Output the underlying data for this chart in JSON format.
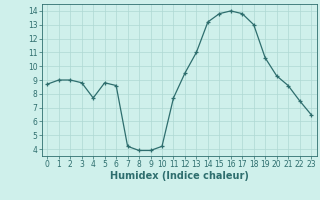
{
  "x": [
    0,
    1,
    2,
    3,
    4,
    5,
    6,
    7,
    8,
    9,
    10,
    11,
    12,
    13,
    14,
    15,
    16,
    17,
    18,
    19,
    20,
    21,
    22,
    23
  ],
  "y": [
    8.7,
    9.0,
    9.0,
    8.8,
    7.7,
    8.8,
    8.6,
    4.2,
    3.9,
    3.9,
    4.2,
    7.7,
    9.5,
    11.0,
    13.2,
    13.8,
    14.0,
    13.8,
    13.0,
    10.6,
    9.3,
    8.6,
    7.5,
    6.5
  ],
  "line_color": "#2e6e6e",
  "marker": "+",
  "bg_color": "#cff0eb",
  "grid_color": "#aed8d3",
  "xlabel": "Humidex (Indice chaleur)",
  "ylim": [
    3.5,
    14.5
  ],
  "xlim": [
    -0.5,
    23.5
  ],
  "yticks": [
    4,
    5,
    6,
    7,
    8,
    9,
    10,
    11,
    12,
    13,
    14
  ],
  "xticks": [
    0,
    1,
    2,
    3,
    4,
    5,
    6,
    7,
    8,
    9,
    10,
    11,
    12,
    13,
    14,
    15,
    16,
    17,
    18,
    19,
    20,
    21,
    22,
    23
  ],
  "axis_color": "#2e6e6e",
  "font_color": "#2e6e6e",
  "tick_fontsize": 5.5,
  "xlabel_fontsize": 7.0,
  "linewidth": 0.9,
  "markersize": 3.5,
  "grid_linewidth": 0.5
}
